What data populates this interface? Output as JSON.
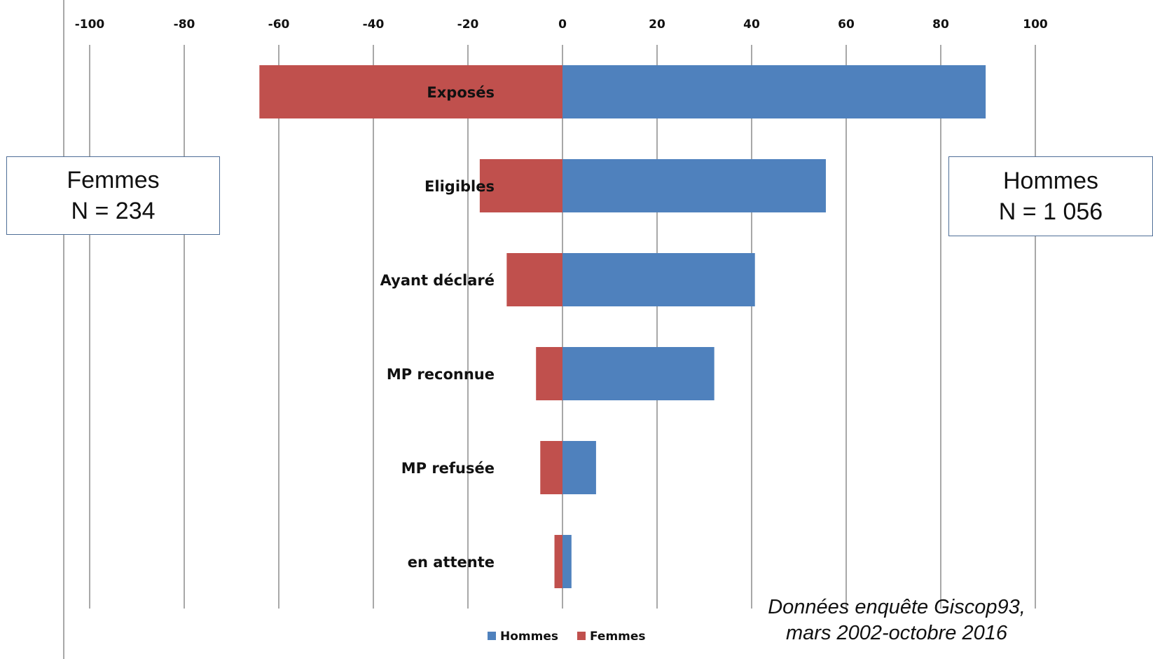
{
  "chart_data": {
    "type": "bar",
    "orientation": "horizontal",
    "stacked": "diverging",
    "categories": [
      "Exposés",
      "Eligibles",
      "Ayant déclaré",
      "MP reconnue",
      "MP refusée",
      "en attente"
    ],
    "series": [
      {
        "name": "Hommes",
        "color": "#4f81bd",
        "values": [
          89.5,
          55.7,
          40.7,
          32.1,
          7.1,
          1.9
        ]
      },
      {
        "name": "Femmes",
        "color": "#c0504d",
        "values": [
          -64.1,
          -17.5,
          -11.8,
          -5.6,
          -4.7,
          -1.7
        ]
      }
    ],
    "xlim": [
      -100,
      100
    ],
    "xticks": [
      -100,
      -80,
      -60,
      -40,
      -20,
      0,
      20,
      40,
      60,
      80,
      100
    ],
    "grid": "vertical",
    "legend": "bottom"
  },
  "annotations": {
    "left_box": {
      "line1": "Femmes",
      "line2": "N = 234"
    },
    "right_box": {
      "line1": "Hommes",
      "line2": "N = 1 056"
    },
    "source_line1": "Données enquête Giscop93,",
    "source_line2": "mars 2002-octobre 2016"
  }
}
